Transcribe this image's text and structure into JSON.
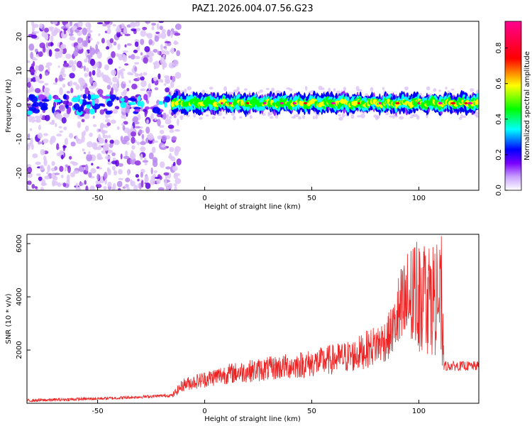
{
  "title": "PAZ1.2026.004.07.56.G23",
  "chart_data": [
    {
      "type": "heatmap",
      "xlabel": "Height of straight line (km)",
      "ylabel": "Frequency (Hz)",
      "xlim": [
        -83,
        128
      ],
      "ylim": [
        -25,
        24.5
      ],
      "xticks": [
        -50,
        0,
        50,
        100
      ],
      "yticks": [
        -20,
        -10,
        0,
        10,
        20
      ],
      "colorbar": {
        "label": "Normalized spectral amplitude",
        "range": [
          0,
          0.95
        ],
        "ticks": [
          0.0,
          0.2,
          0.4,
          0.6,
          0.8
        ],
        "colors": [
          "#ffffff",
          "#9b30ff",
          "#0000ff",
          "#00ffff",
          "#00ff00",
          "#ffff00",
          "#ff0000",
          "#ff00aa"
        ]
      },
      "regions": [
        {
          "x_range": [
            -83,
            -15
          ],
          "description_values": "scattered low amplitude 0.05-0.3 across -25..24 Hz"
        },
        {
          "x_range": [
            -15,
            128
          ],
          "center_frequency_hz": 0.5,
          "band_width_hz": 3,
          "peak_amplitude": 0.9
        }
      ]
    },
    {
      "type": "line",
      "xlabel": "Height of straight line (km)",
      "ylabel": "SNR (10 * v/v)",
      "xlim": [
        -83,
        128
      ],
      "ylim": [
        0,
        6350
      ],
      "xticks": [
        -50,
        0,
        50,
        100
      ],
      "yticks": [
        2000,
        4000,
        6000
      ],
      "color": "#ee2222",
      "envelope": [
        {
          "x": -83,
          "y": 100
        },
        {
          "x": -40,
          "y": 200
        },
        {
          "x": -15,
          "y": 300
        },
        {
          "x": -10,
          "y": 700
        },
        {
          "x": 0,
          "y": 900
        },
        {
          "x": 10,
          "y": 1100
        },
        {
          "x": 30,
          "y": 1300
        },
        {
          "x": 50,
          "y": 1500
        },
        {
          "x": 70,
          "y": 1800
        },
        {
          "x": 85,
          "y": 2400
        },
        {
          "x": 95,
          "y": 3800
        },
        {
          "x": 100,
          "y": 4200
        },
        {
          "x": 110,
          "y": 3900
        },
        {
          "x": 112,
          "y": 1400
        },
        {
          "x": 128,
          "y": 1400
        }
      ]
    }
  ]
}
